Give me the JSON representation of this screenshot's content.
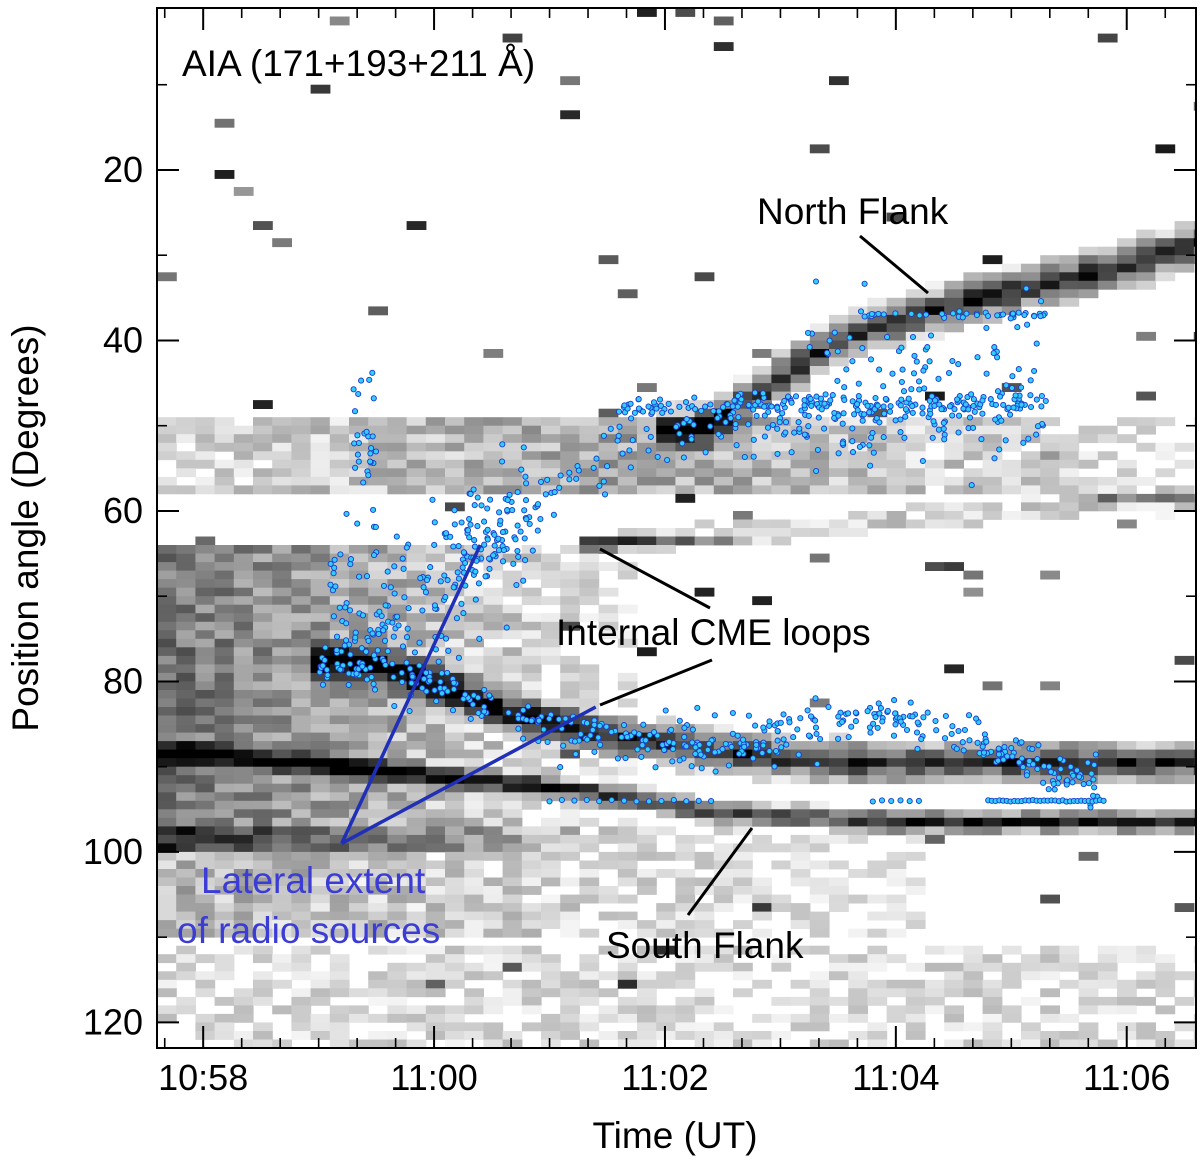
{
  "chart_data": {
    "type": "scatter",
    "title": "AIA (171+193+211 Å)",
    "xlabel": "Time (UT)",
    "ylabel": "Position angle (Degrees)",
    "x_range_minutes": [
      -1.4,
      7.6
    ],
    "x_ticks": [
      {
        "value": -1,
        "label": "10:58"
      },
      {
        "value": 1,
        "label": "11:00"
      },
      {
        "value": 3,
        "label": "11:02"
      },
      {
        "value": 5,
        "label": "11:04"
      },
      {
        "value": 7,
        "label": "11:06"
      }
    ],
    "ylim": [
      1,
      123
    ],
    "y_inverted": true,
    "y_ticks": [
      20,
      40,
      60,
      80,
      100,
      120
    ],
    "annotations": [
      {
        "id": "north-flank",
        "text": "North Flank",
        "color": "#000000"
      },
      {
        "id": "internal-cme-loops",
        "text": "Internal CME loops",
        "color": "#000000"
      },
      {
        "id": "south-flank",
        "text": "South Flank",
        "color": "#000000"
      },
      {
        "id": "lateral-extent-1",
        "text": "Lateral extent",
        "color": "#3b3bd6"
      },
      {
        "id": "lateral-extent-2",
        "text": "of radio sources",
        "color": "#3b3bd6"
      }
    ],
    "colors": {
      "background_map": "grayscale",
      "radio_points": "#33ccff",
      "radio_point_edge": "#1a3cc8",
      "lateral_lines": "#1f2fb8"
    },
    "series": [
      {
        "kind": "features",
        "features": [
          {
            "id": "north-flank-band",
            "points": [
              [
                3.2,
                50
              ],
              [
                4.5,
                39
              ],
              [
                5.5,
                35
              ],
              [
                6.5,
                32
              ],
              [
                7.6,
                28
              ]
            ]
          },
          {
            "id": "internal-loop-upper",
            "points": [
              [
                2.5,
                63
              ],
              [
                4.0,
                61.5
              ],
              [
                5.5,
                60
              ],
              [
                7.0,
                58.5
              ]
            ]
          },
          {
            "id": "internal-loop-lower",
            "points": [
              [
                0.2,
                77
              ],
              [
                1.0,
                80
              ],
              [
                1.5,
                83
              ],
              [
                2.5,
                86
              ],
              [
                3.5,
                88
              ],
              [
                4.5,
                89
              ]
            ]
          },
          {
            "id": "south-flank-band",
            "points": [
              [
                -1.2,
                88
              ],
              [
                0.5,
                90
              ],
              [
                2.0,
                92
              ],
              [
                3.5,
                95
              ],
              [
                5.0,
                96
              ],
              [
                7.6,
                96
              ]
            ]
          }
        ]
      },
      {
        "kind": "radio-sources",
        "curves": [
          {
            "pts": [
              [
                0.0,
                78
              ],
              [
                0.5,
                79
              ],
              [
                1.0,
                80
              ],
              [
                1.3,
                83
              ],
              [
                1.8,
                85
              ],
              [
                2.5,
                86
              ],
              [
                3.2,
                87
              ],
              [
                3.8,
                87
              ],
              [
                4.5,
                85
              ],
              [
                5.0,
                84
              ],
              [
                5.5,
                86
              ],
              [
                6.0,
                89
              ],
              [
                6.5,
                91
              ],
              [
                6.8,
                92
              ]
            ],
            "n": 420,
            "spread": 1.4
          },
          {
            "pts": [
              [
                1.2,
                65
              ],
              [
                1.8,
                61
              ],
              [
                2.4,
                54
              ],
              [
                3.0,
                50
              ],
              [
                4.0,
                49
              ],
              [
                5.0,
                49
              ],
              [
                6.3,
                49
              ]
            ],
            "n": 210,
            "spread": 2.2
          },
          {
            "pts": [
              [
                2.6,
                48
              ],
              [
                4.0,
                47.5
              ],
              [
                5.0,
                47.5
              ],
              [
                6.3,
                47.5
              ]
            ],
            "n": 140,
            "spread": 0.5
          },
          {
            "pts": [
              [
                4.7,
                37
              ],
              [
                6.3,
                37
              ]
            ],
            "n": 38,
            "spread": 0.15
          },
          {
            "pts": [
              [
                0.1,
                70
              ],
              [
                0.5,
                74
              ],
              [
                1.0,
                70
              ],
              [
                1.3,
                64
              ],
              [
                1.8,
                60
              ]
            ],
            "n": 200,
            "spread": 4.5
          },
          {
            "pts": [
              [
                4.2,
                46
              ],
              [
                6.3,
                44
              ]
            ],
            "n": 110,
            "spread": 5.0
          },
          {
            "pts": [
              [
                0.5,
                53
              ],
              [
                0.9,
                48
              ],
              [
                0.3,
                43
              ]
            ],
            "n": 30,
            "spread": 4.0
          }
        ],
        "south_row": [
          {
            "x": [
              2.0,
              3.4
            ],
            "y": 94,
            "n": 14
          },
          {
            "x": [
              4.8,
              5.2
            ],
            "y": 94,
            "n": 6
          },
          {
            "x": [
              5.8,
              6.8
            ],
            "y": 94,
            "n": 32
          }
        ]
      },
      {
        "kind": "lateral-lines",
        "origin": [
          0.2,
          99
        ],
        "targets": [
          [
            1.4,
            64
          ],
          [
            2.4,
            83
          ]
        ]
      }
    ]
  }
}
